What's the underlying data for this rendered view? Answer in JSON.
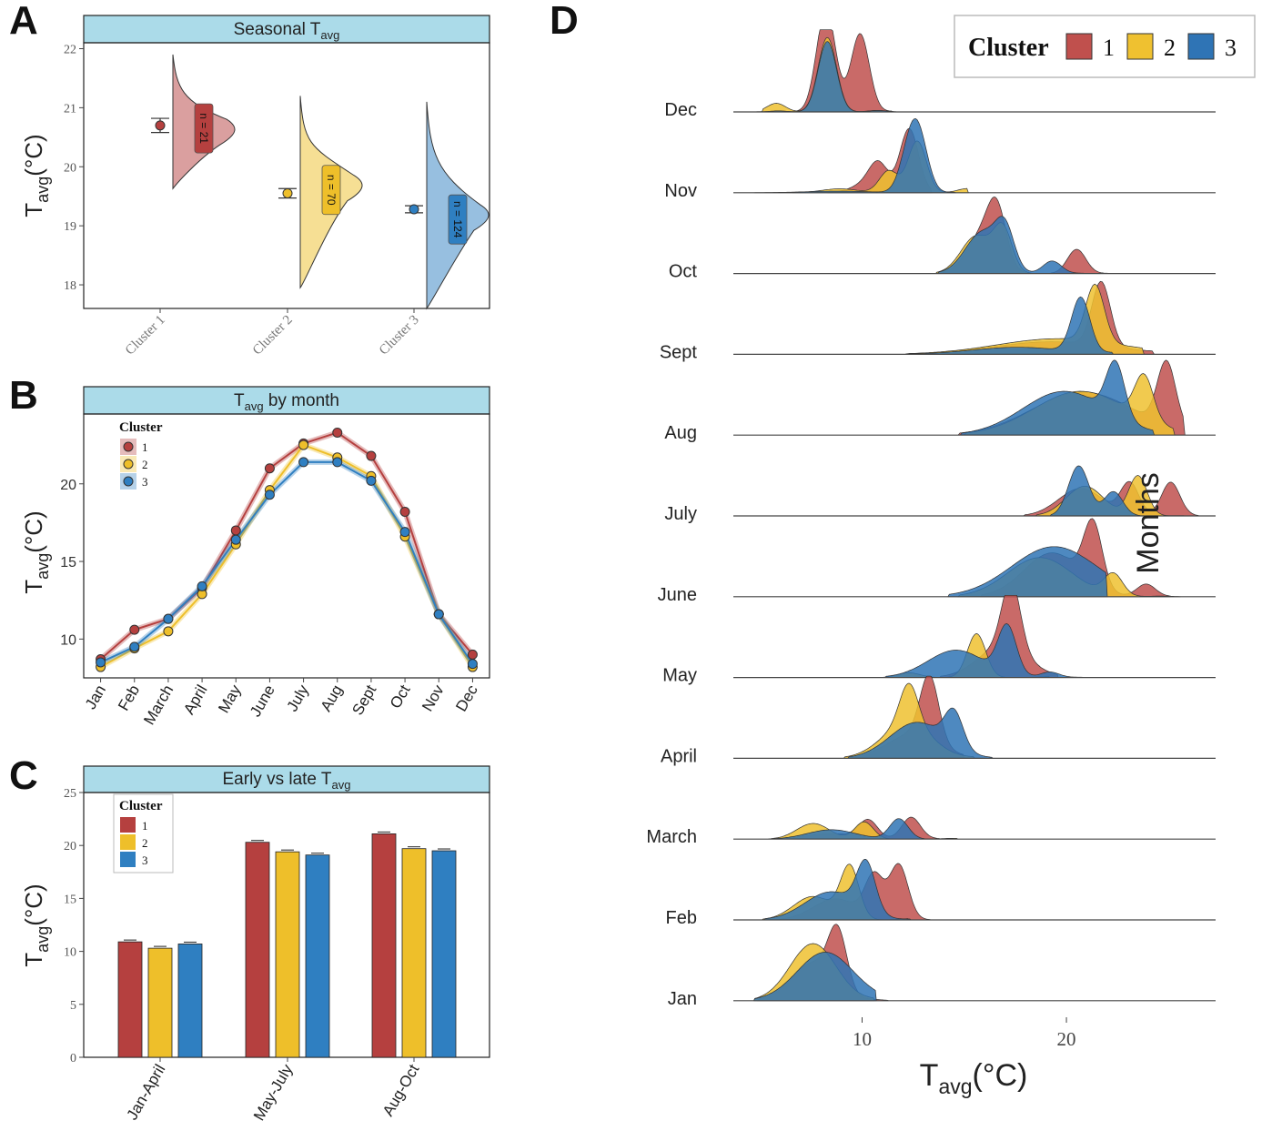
{
  "colors": {
    "c1": "#b5403f",
    "c2": "#eebf2a",
    "c3": "#2f7fc1",
    "strip": "#abdbe9",
    "ridge1": "#c0504d",
    "ridge2": "#efc130",
    "ridge3": "#2f74b5"
  },
  "panel_labels": {
    "a": "A",
    "b": "B",
    "c": "C",
    "d": "D"
  },
  "chart_data": [
    {
      "id": "A",
      "type": "raincloud",
      "title_main": "Seasonal T",
      "title_sub": "avg",
      "ylabel_main": "T",
      "ylabel_sub": "avg",
      "ylabel_unit": "(°C)",
      "ylim": [
        17.6,
        22.1
      ],
      "yticks": [
        18,
        19,
        20,
        21,
        22
      ],
      "categories": [
        "Cluster 1",
        "Cluster 2",
        "Cluster 3"
      ],
      "means": [
        20.7,
        19.55,
        19.28
      ],
      "sem": [
        0.12,
        0.08,
        0.06
      ],
      "n_labels": [
        "n = 21",
        "n = 70",
        "n = 124"
      ],
      "density_range": [
        [
          19.63,
          21.9
        ],
        [
          17.95,
          21.2
        ],
        [
          17.6,
          21.1
        ]
      ],
      "density_peak": [
        20.65,
        19.7,
        19.2
      ]
    },
    {
      "id": "B",
      "type": "line",
      "title_main": "T",
      "title_sub": "avg",
      "title_rest": " by month",
      "ylabel_main": "T",
      "ylabel_sub": "avg",
      "ylabel_unit": "(°C)",
      "ylim": [
        7.5,
        24.5
      ],
      "yticks": [
        10,
        15,
        20
      ],
      "legend_title": "Cluster",
      "legend_position": "top-left",
      "categories": [
        "Jan",
        "Feb",
        "March",
        "April",
        "May",
        "June",
        "July",
        "Aug",
        "Sept",
        "Oct",
        "Nov",
        "Dec"
      ],
      "series": [
        {
          "name": "1",
          "values": [
            8.7,
            10.6,
            11.3,
            13.3,
            17.0,
            21.0,
            22.6,
            23.3,
            21.8,
            18.2,
            11.6,
            9.0
          ]
        },
        {
          "name": "2",
          "values": [
            8.2,
            9.4,
            10.5,
            12.9,
            16.1,
            19.6,
            22.5,
            21.7,
            20.5,
            16.6,
            11.6,
            8.2
          ]
        },
        {
          "name": "3",
          "values": [
            8.5,
            9.5,
            11.3,
            13.4,
            16.4,
            19.3,
            21.4,
            21.4,
            20.2,
            16.9,
            11.6,
            8.4
          ]
        }
      ]
    },
    {
      "id": "C",
      "type": "bar",
      "title_main": "Early vs late T",
      "title_sub": "avg",
      "ylabel_main": "T",
      "ylabel_sub": "avg",
      "ylabel_unit": "(°C)",
      "ylim": [
        0,
        25
      ],
      "yticks": [
        0,
        5,
        10,
        15,
        20,
        25
      ],
      "legend_title": "Cluster",
      "legend_position": "top-left",
      "categories": [
        "Jan-April",
        "May-July",
        "Aug-Oct"
      ],
      "series": [
        {
          "name": "1",
          "values": [
            10.9,
            20.3,
            21.1
          ]
        },
        {
          "name": "2",
          "values": [
            10.3,
            19.4,
            19.7
          ]
        },
        {
          "name": "3",
          "values": [
            10.7,
            19.1,
            19.5
          ]
        }
      ]
    },
    {
      "id": "D",
      "type": "ridgeline",
      "xlabel_main": "T",
      "xlabel_sub": "avg",
      "xlabel_unit": "(°C)",
      "ylabel": "Months",
      "xlim": [
        3.7,
        27.3
      ],
      "xticks": [
        10,
        20
      ],
      "legend_title": "Cluster",
      "legend_position": "top-right",
      "legend_entries": [
        "1",
        "2",
        "3"
      ],
      "months": [
        "Dec",
        "Nov",
        "Oct",
        "Sept",
        "Aug",
        "July",
        "June",
        "May",
        "April",
        "March",
        "Feb",
        "Jan"
      ],
      "ridges": {
        "Dec": {
          "1": [
            [
              4.2,
              5.8,
              0.008
            ],
            [
              7.6,
              8.3,
              0.9
            ],
            [
              8.9,
              8.1,
              0.45
            ],
            [
              9.8,
              9.9,
              1.0
            ],
            [
              10.3,
              12.3,
              0.014
            ]
          ],
          "2": [
            [
              5.3,
              5.8,
              0.11
            ],
            [
              8.0,
              8.3,
              0.95
            ],
            [
              10.5,
              10.7,
              0.018
            ]
          ],
          "3": [
            [
              5.1,
              5.9,
              0.013
            ],
            [
              7.9,
              8.3,
              0.9
            ],
            [
              10.5,
              10.8,
              0.018
            ]
          ]
        },
        "Nov": {
          "1": [
            [
              8.5,
              10.3,
              0.12
            ],
            [
              10.4,
              10.8,
              0.31
            ],
            [
              11.6,
              12.3,
              0.8
            ],
            [
              12.2,
              12.6,
              0.02
            ]
          ],
          "2": [
            [
              6.8,
              8.9,
              0.05
            ],
            [
              10.4,
              11.3,
              0.28
            ],
            [
              12.1,
              12.7,
              0.66
            ],
            [
              14.0,
              15.2,
              0.055
            ]
          ],
          "3": [
            [
              4.9,
              8.8,
              0.02
            ],
            [
              11.5,
              12.3,
              0.48
            ],
            [
              12.6,
              12.8,
              0.62
            ],
            [
              13.4,
              15.2,
              0.008
            ]
          ]
        },
        "Oct": {
          "1": [
            [
              14.1,
              15.9,
              0.5
            ],
            [
              17.6,
              16.6,
              0.63
            ],
            [
              20.8,
              20.5,
              0.31
            ],
            [
              21.2,
              22.4,
              0.004
            ]
          ],
          "2": [
            [
              13.8,
              15.6,
              0.48
            ],
            [
              17.6,
              16.9,
              0.53
            ],
            [
              19.2,
              20.8,
              0.003
            ]
          ],
          "3": [
            [
              13.9,
              15.9,
              0.53
            ],
            [
              17.1,
              17.0,
              0.48
            ],
            [
              18.4,
              19.3,
              0.16
            ],
            [
              19.7,
              20.8,
              0.004
            ]
          ]
        },
        "Sept": {
          "1": [
            [
              12.3,
              19.3,
              0.16
            ],
            [
              21.4,
              21.7,
              0.82
            ],
            [
              23.1,
              24.3,
              0.004
            ]
          ],
          "2": [
            [
              12.4,
              19.6,
              0.2
            ],
            [
              20.6,
              21.4,
              0.73
            ],
            [
              22.6,
              23.9,
              0.004
            ]
          ],
          "3": [
            [
              12.3,
              17.6,
              0.09
            ],
            [
              20.4,
              20.7,
              0.7
            ],
            [
              21.1,
              22.8,
              0.02
            ]
          ]
        },
        "Aug": {
          "1": [
            [
              14.9,
              20.8,
              0.55
            ],
            [
              24.1,
              24.9,
              0.82
            ],
            [
              24.6,
              25.9,
              0.004
            ]
          ],
          "2": [
            [
              15.2,
              20.7,
              0.56
            ],
            [
              23.1,
              23.8,
              0.56
            ],
            [
              24.1,
              24.9,
              0.004
            ]
          ],
          "3": [
            [
              15.0,
              19.9,
              0.56
            ],
            [
              21.6,
              22.4,
              0.69
            ],
            [
              23.1,
              24.4,
              0.004
            ]
          ]
        },
        "July": {
          "1": [
            [
              18.1,
              20.7,
              0.35
            ],
            [
              22.5,
              23.1,
              0.41
            ],
            [
              24.5,
              25.1,
              0.43
            ],
            [
              25.3,
              25.8,
              0.004
            ]
          ],
          "2": [
            [
              18.7,
              20.9,
              0.38
            ],
            [
              23.3,
              23.5,
              0.51
            ],
            [
              24.6,
              25.6,
              0.004
            ]
          ],
          "3": [
            [
              19.4,
              20.6,
              0.64
            ],
            [
              23.4,
              22.3,
              0.31
            ],
            [
              24.3,
              25.8,
              0.003
            ]
          ]
        },
        "June": {
          "1": [
            [
              16.0,
              19.3,
              0.56
            ],
            [
              20.9,
              21.3,
              0.8
            ],
            [
              23.7,
              23.9,
              0.16
            ],
            [
              24.4,
              24.8,
              0.004
            ]
          ],
          "2": [
            [
              14.9,
              18.7,
              0.5
            ],
            [
              21.6,
              22.3,
              0.27
            ],
            [
              23.9,
              24.6,
              0.008
            ]
          ],
          "3": [
            [
              14.4,
              19.4,
              0.64
            ],
            [
              20.8,
              21.7,
              0.003
            ]
          ]
        },
        "May": {
          "1": [
            [
              14.0,
              16.9,
              0.4
            ],
            [
              17.0,
              17.3,
              0.86
            ],
            [
              18.4,
              19.4,
              0.004
            ]
          ],
          "2": [
            [
              11.0,
              12.3,
              0.06
            ],
            [
              15.5,
              15.6,
              0.56
            ],
            [
              18.0,
              20.9,
              0.04
            ]
          ],
          "3": [
            [
              11.3,
              14.6,
              0.35
            ],
            [
              16.3,
              17.1,
              0.62
            ],
            [
              18.5,
              19.2,
              0.07
            ],
            [
              20.3,
              20.6,
              0.004
            ]
          ]
        },
        "April": {
          "1": [
            [
              9.5,
              12.5,
              0.31
            ],
            [
              13.0,
              13.3,
              0.82
            ],
            [
              13.8,
              15.5,
              0.003
            ]
          ],
          "2": [
            [
              9.3,
              12.2,
              0.44
            ],
            [
              12.4,
              12.3,
              0.52
            ],
            [
              14.3,
              15.6,
              0.01
            ]
          ],
          "3": [
            [
              9.5,
              12.7,
              0.46
            ],
            [
              14.2,
              14.5,
              0.45
            ],
            [
              15.2,
              15.9,
              0.004
            ]
          ]
        },
        "March": {
          "1": [
            [
              5.6,
              8.5,
              0.07
            ],
            [
              10.7,
              10.3,
              0.23
            ],
            [
              12.4,
              12.4,
              0.28
            ],
            [
              12.9,
              13.4,
              0.006
            ]
          ],
          "2": [
            [
              5.7,
              7.6,
              0.2
            ],
            [
              10.6,
              10.1,
              0.22
            ],
            [
              13.5,
              14.4,
              0.011
            ]
          ],
          "3": [
            [
              5.7,
              8.5,
              0.12
            ],
            [
              11.2,
              11.8,
              0.26
            ],
            [
              13.3,
              16.0,
              0.011
            ]
          ]
        },
        "Feb": {
          "1": [
            [
              6.1,
              8.7,
              0.27
            ],
            [
              10.6,
              10.6,
              0.54
            ],
            [
              11.7,
              11.8,
              0.7
            ],
            [
              12.4,
              12.8,
              0.004
            ]
          ],
          "2": [
            [
              5.3,
              7.6,
              0.3
            ],
            [
              9.7,
              9.4,
              0.66
            ],
            [
              11.1,
              12.7,
              0.02
            ]
          ],
          "3": [
            [
              5.4,
              8.5,
              0.36
            ],
            [
              9.8,
              10.2,
              0.62
            ],
            [
              11.2,
              12.8,
              0.009
            ]
          ]
        },
        "Jan": {
          "1": [
            [
              5.1,
              7.6,
              0.48
            ],
            [
              8.4,
              8.8,
              0.72
            ],
            [
              10.1,
              10.7,
              0.01
            ]
          ],
          "2": [
            [
              4.9,
              7.6,
              0.73
            ],
            [
              9.4,
              10.5,
              0.012
            ]
          ],
          "3": [
            [
              4.9,
              8.2,
              0.62
            ],
            [
              9.5,
              10.6,
              0.006
            ]
          ]
        }
      }
    }
  ]
}
